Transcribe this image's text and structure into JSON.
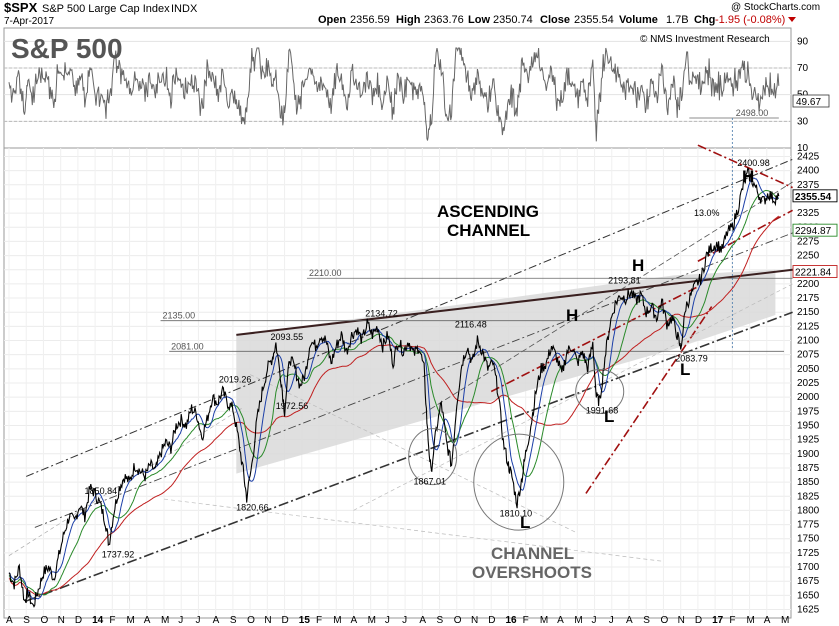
{
  "header": {
    "symbol": "$SPX",
    "name": "S&P 500 Large Cap Index",
    "exchange": "INDX",
    "date": "7-Apr-2017",
    "open_label": "Open",
    "open": "2356.59",
    "high_label": "High",
    "high": "2363.76",
    "low_label": "Low",
    "low": "2350.74",
    "close_label": "Close",
    "close": "2355.54",
    "volume_label": "Volume",
    "volume": "1.7B",
    "chg_label": "Chg",
    "chg": "-1.95 (-0.08%)",
    "copyright": "@ StockCharts.com",
    "research": "© NMS Investment Research"
  },
  "colors": {
    "price": "#000000",
    "ma_fast": "#1c3fa8",
    "ma_mid": "#2a8a2a",
    "ma_slow": "#c02020",
    "channel_fill": "#d8d8d8",
    "rsi": "#555555",
    "rsi_fill_high": "#7fbf7f",
    "rsi_fill_low": "#aaaaaa"
  },
  "chart_data": [
    {
      "type": "line",
      "indicator": "RSI",
      "y_ticks": [
        10,
        30,
        50,
        70,
        90
      ],
      "ylim": [
        10,
        100
      ],
      "current_value": "49.67",
      "levels": [
        30,
        70
      ]
    },
    {
      "type": "line",
      "title": "S&P 500",
      "x_ticks": [
        "A",
        "S",
        "O",
        "N",
        "D",
        "14",
        "F",
        "M",
        "A",
        "M",
        "J",
        "J",
        "A",
        "S",
        "O",
        "N",
        "D",
        "15",
        "F",
        "M",
        "A",
        "M",
        "J",
        "J",
        "A",
        "S",
        "O",
        "N",
        "D",
        "16",
        "F",
        "M",
        "A",
        "M",
        "J",
        "J",
        "A",
        "S",
        "O",
        "N",
        "D",
        "17",
        "F",
        "M",
        "A",
        "M"
      ],
      "x_month_index": [
        0,
        1,
        2,
        3,
        4,
        5,
        6,
        7,
        8,
        9,
        10,
        11,
        12,
        13,
        14,
        15,
        16,
        17,
        18,
        19,
        20,
        21,
        22,
        23,
        24,
        25,
        26,
        27,
        28,
        29,
        30,
        31,
        32,
        33,
        34,
        35,
        36,
        37,
        38,
        39,
        40,
        41,
        42,
        43,
        44,
        45
      ],
      "y_ticks": [
        1625,
        1650,
        1675,
        1700,
        1725,
        1750,
        1775,
        1800,
        1825,
        1850,
        1875,
        1900,
        1925,
        1950,
        1975,
        2000,
        2025,
        2050,
        2075,
        2100,
        2125,
        2150,
        2175,
        2200,
        2225,
        2250,
        2275,
        2300,
        2325,
        2350,
        2375,
        2400,
        2425
      ],
      "ylim": [
        1610,
        2440
      ],
      "price_anchors": [
        [
          0.0,
          1690
        ],
        [
          0.3,
          1670
        ],
        [
          0.6,
          1700
        ],
        [
          0.9,
          1640
        ],
        [
          1.1,
          1655
        ],
        [
          1.4,
          1630
        ],
        [
          1.7,
          1660
        ],
        [
          2.0,
          1690
        ],
        [
          2.3,
          1700
        ],
        [
          2.6,
          1680
        ],
        [
          2.9,
          1720
        ],
        [
          3.2,
          1760
        ],
        [
          3.5,
          1790
        ],
        [
          3.8,
          1780
        ],
        [
          4.1,
          1810
        ],
        [
          4.4,
          1790
        ],
        [
          4.7,
          1840
        ],
        [
          5.0,
          1830
        ],
        [
          5.3,
          1810
        ],
        [
          5.6,
          1780
        ],
        [
          5.8,
          1740
        ],
        [
          6.1,
          1800
        ],
        [
          6.4,
          1840
        ],
        [
          6.7,
          1860
        ],
        [
          7.0,
          1850
        ],
        [
          7.3,
          1880
        ],
        [
          7.6,
          1870
        ],
        [
          7.9,
          1860
        ],
        [
          8.2,
          1880
        ],
        [
          8.5,
          1870
        ],
        [
          8.8,
          1900
        ],
        [
          9.1,
          1920
        ],
        [
          9.4,
          1910
        ],
        [
          9.7,
          1950
        ],
        [
          10.0,
          1960
        ],
        [
          10.3,
          1950
        ],
        [
          10.6,
          1980
        ],
        [
          10.9,
          1970
        ],
        [
          11.2,
          1930
        ],
        [
          11.5,
          1960
        ],
        [
          11.8,
          2000
        ],
        [
          12.1,
          1990
        ],
        [
          12.4,
          2010
        ],
        [
          12.7,
          1990
        ],
        [
          13.0,
          1980
        ],
        [
          13.3,
          1930
        ],
        [
          13.6,
          1870
        ],
        [
          13.8,
          1822
        ],
        [
          14.1,
          1880
        ],
        [
          14.4,
          1960
        ],
        [
          14.7,
          2010
        ],
        [
          15.0,
          2050
        ],
        [
          15.3,
          2070
        ],
        [
          15.5,
          2095
        ],
        [
          15.8,
          2030
        ],
        [
          16.0,
          1975
        ],
        [
          16.3,
          2070
        ],
        [
          16.6,
          2050
        ],
        [
          16.9,
          2020
        ],
        [
          17.2,
          2040
        ],
        [
          17.5,
          2100
        ],
        [
          17.8,
          2090
        ],
        [
          18.1,
          2110
        ],
        [
          18.4,
          2100
        ],
        [
          18.7,
          2060
        ],
        [
          19.0,
          2090
        ],
        [
          19.3,
          2110
        ],
        [
          19.6,
          2080
        ],
        [
          19.9,
          2110
        ],
        [
          20.2,
          2120
        ],
        [
          20.5,
          2100
        ],
        [
          20.8,
          2130
        ],
        [
          21.1,
          2110
        ],
        [
          21.4,
          2125
        ],
        [
          21.7,
          2090
        ],
        [
          22.0,
          2110
        ],
        [
          22.3,
          2060
        ],
        [
          22.6,
          2100
        ],
        [
          22.9,
          2080
        ],
        [
          23.2,
          2100
        ],
        [
          23.5,
          2075
        ],
        [
          23.8,
          2090
        ],
        [
          24.1,
          2050
        ],
        [
          24.3,
          1940
        ],
        [
          24.5,
          1867
        ],
        [
          24.8,
          1940
        ],
        [
          25.1,
          1990
        ],
        [
          25.4,
          1920
        ],
        [
          25.7,
          1880
        ],
        [
          26.0,
          1990
        ],
        [
          26.3,
          2060
        ],
        [
          26.6,
          2090
        ],
        [
          26.9,
          2060
        ],
        [
          27.2,
          2100
        ],
        [
          27.5,
          2080
        ],
        [
          27.8,
          2050
        ],
        [
          28.1,
          2060
        ],
        [
          28.4,
          2010
        ],
        [
          28.7,
          1920
        ],
        [
          29.0,
          1880
        ],
        [
          29.2,
          1860
        ],
        [
          29.5,
          1812
        ],
        [
          29.8,
          1860
        ],
        [
          30.0,
          1900
        ],
        [
          30.3,
          1950
        ],
        [
          30.6,
          2010
        ],
        [
          30.9,
          2050
        ],
        [
          31.2,
          2060
        ],
        [
          31.5,
          2090
        ],
        [
          31.8,
          2070
        ],
        [
          32.1,
          2040
        ],
        [
          32.4,
          2080
        ],
        [
          32.7,
          2090
        ],
        [
          33.0,
          2060
        ],
        [
          33.3,
          2080
        ],
        [
          33.6,
          2050
        ],
        [
          33.9,
          2095
        ],
        [
          34.1,
          2000
        ],
        [
          34.3,
          1992
        ],
        [
          34.6,
          2070
        ],
        [
          34.9,
          2130
        ],
        [
          35.2,
          2165
        ],
        [
          35.5,
          2180
        ],
        [
          35.8,
          2175
        ],
        [
          36.1,
          2185
        ],
        [
          36.4,
          2170
        ],
        [
          36.7,
          2180
        ],
        [
          37.0,
          2150
        ],
        [
          37.3,
          2160
        ],
        [
          37.6,
          2140
        ],
        [
          37.9,
          2170
        ],
        [
          38.2,
          2130
        ],
        [
          38.5,
          2140
        ],
        [
          38.8,
          2110
        ],
        [
          39.0,
          2085
        ],
        [
          39.3,
          2160
        ],
        [
          39.6,
          2180
        ],
        [
          39.9,
          2200
        ],
        [
          40.2,
          2210
        ],
        [
          40.5,
          2250
        ],
        [
          40.8,
          2265
        ],
        [
          41.1,
          2270
        ],
        [
          41.4,
          2260
        ],
        [
          41.7,
          2290
        ],
        [
          42.0,
          2300
        ],
        [
          42.3,
          2330
        ],
        [
          42.6,
          2370
        ],
        [
          42.9,
          2395
        ],
        [
          43.2,
          2380
        ],
        [
          43.5,
          2360
        ],
        [
          43.8,
          2345
        ],
        [
          44.1,
          2360
        ],
        [
          44.4,
          2350
        ],
        [
          44.7,
          2355
        ]
      ],
      "y_axis_labels": [
        "2355.54",
        "2294.87",
        "2221.84"
      ],
      "annotations": [
        {
          "label": "1850.84",
          "x": 5.2,
          "y": 1850
        },
        {
          "label": "1737.92",
          "x": 6.2,
          "y": 1738
        },
        {
          "label": "1820.66",
          "x": 14.0,
          "y": 1821
        },
        {
          "label": "2019.26",
          "x": 13.0,
          "y": 2019
        },
        {
          "label": "1972.56",
          "x": 16.3,
          "y": 1972
        },
        {
          "label": "2093.55",
          "x": 16.0,
          "y": 2094
        },
        {
          "label": "2134.72",
          "x": 21.5,
          "y": 2135
        },
        {
          "label": "2116.48",
          "x": 26.7,
          "y": 2116
        },
        {
          "label": "1867.01",
          "x": 24.3,
          "y": 1867
        },
        {
          "label": "1810.10",
          "x": 29.3,
          "y": 1810
        },
        {
          "label": "1991.68",
          "x": 34.3,
          "y": 1992
        },
        {
          "label": "2193.81",
          "x": 35.6,
          "y": 2194
        },
        {
          "label": "2083.79",
          "x": 39.5,
          "y": 2084
        },
        {
          "label": "2400.98",
          "x": 43.1,
          "y": 2401
        }
      ],
      "levels": [
        {
          "label": "2498.00",
          "y": 2498
        },
        {
          "label": "2210.00",
          "y": 2210
        },
        {
          "label": "2135.00",
          "y": 2135
        },
        {
          "label": "2081.00",
          "y": 2081
        }
      ],
      "text_annotations": {
        "ascending_line1": "ASCENDING",
        "ascending_line2": "CHANNEL",
        "overshoots_line1": "CHANNEL",
        "overshoots_line2": "OVERSHOOTS",
        "pct": "13.0%",
        "H": "H",
        "L": "L"
      }
    }
  ]
}
